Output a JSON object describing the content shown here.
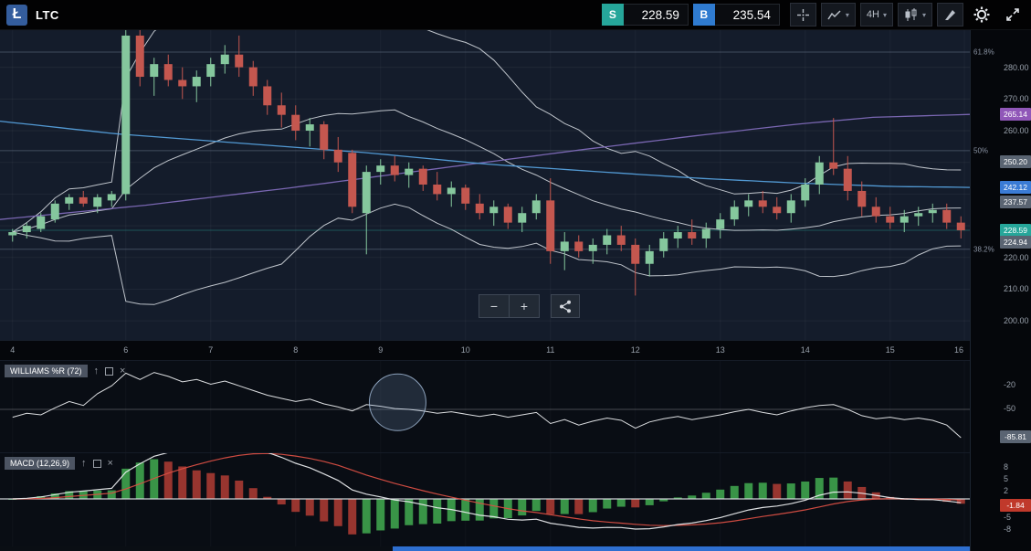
{
  "topbar": {
    "symbol": "LTC",
    "logo_letter": "Ł",
    "sell": {
      "label": "S",
      "price": "228.59"
    },
    "buy": {
      "label": "B",
      "price": "235.54"
    },
    "timeframe": "4H"
  },
  "icons": {
    "arrow_up": "↑",
    "close": "×",
    "minus": "−",
    "plus": "+",
    "caret": "▾"
  },
  "colors": {
    "bg_main": "#141c2b",
    "bg_panel": "#090d14",
    "candle_up": "#85c79d",
    "candle_down": "#c4574f",
    "bollinger": "#dde2e8",
    "ema_blue": "#55a0dc",
    "ma_purple": "#7e6ab8",
    "macd_line": "#e8eaec",
    "signal_line": "#d94f43",
    "hist_up": "#3fa34d",
    "hist_down": "#a83a32",
    "badge_gray": "#5a6472",
    "badge_purple": "#9057b8",
    "badge_blue": "#3a7bd5",
    "badge_teal": "#26a69a",
    "badge_red": "#c0392b",
    "accent_sell": "#26a69a",
    "accent_buy": "#2f7bd0",
    "scrollbar_blue": "#2e6fd0"
  },
  "chart_data": {
    "type": "candlestick",
    "symbol": "LTC",
    "timeframe": "4H",
    "current_price": 228.59,
    "x_axis": {
      "labels": [
        "4",
        "6",
        "7",
        "8",
        "9",
        "10",
        "11",
        "12",
        "13",
        "14",
        "15",
        "16"
      ],
      "indices": [
        0,
        8,
        14,
        20,
        26,
        32,
        38,
        44,
        50,
        56,
        62,
        68
      ]
    },
    "price_axis": {
      "ticks": [
        {
          "label": "280.00",
          "value": 280
        },
        {
          "label": "270.00",
          "value": 270
        },
        {
          "label": "260.00",
          "value": 260
        },
        {
          "label": "220.00",
          "value": 220
        },
        {
          "label": "210.00",
          "value": 210
        },
        {
          "label": "200.00",
          "value": 200
        }
      ],
      "gridlines": [
        280,
        270,
        260,
        250,
        240,
        230,
        220,
        210,
        200
      ],
      "badges": [
        {
          "label": "265.14",
          "value": 265.14,
          "color_key": "badge_purple"
        },
        {
          "label": "250.20",
          "value": 250.2,
          "color_key": "badge_gray"
        },
        {
          "label": "242.12",
          "value": 242.12,
          "color_key": "badge_blue"
        },
        {
          "label": "237.57",
          "value": 237.57,
          "color_key": "badge_gray"
        },
        {
          "label": "228.59",
          "value": 228.59,
          "color_key": "badge_teal"
        },
        {
          "label": "224.94",
          "value": 224.94,
          "color_key": "badge_gray"
        }
      ]
    },
    "fib_levels": [
      {
        "label": "61.8%",
        "price": 284.8
      },
      {
        "label": "50%",
        "price": 253.7
      },
      {
        "label": "38.2%",
        "price": 222.6
      }
    ],
    "candles": [
      [
        227,
        229,
        225,
        228
      ],
      [
        228,
        231,
        226,
        230
      ],
      [
        229,
        234,
        228,
        233
      ],
      [
        232,
        238,
        231,
        237
      ],
      [
        237,
        240,
        235,
        239
      ],
      [
        239,
        241,
        236,
        237
      ],
      [
        236,
        240,
        234,
        239
      ],
      [
        238,
        241,
        236,
        240
      ],
      [
        240,
        294,
        238,
        290
      ],
      [
        290,
        295,
        274,
        277
      ],
      [
        277,
        283,
        271,
        281
      ],
      [
        281,
        284,
        274,
        276
      ],
      [
        276,
        280,
        270,
        274
      ],
      [
        274,
        279,
        269,
        277
      ],
      [
        277,
        283,
        274,
        281
      ],
      [
        281,
        287,
        278,
        284
      ],
      [
        284,
        290,
        277,
        280
      ],
      [
        280,
        282,
        271,
        274
      ],
      [
        274,
        276,
        265,
        268
      ],
      [
        268,
        272,
        261,
        265
      ],
      [
        265,
        268,
        257,
        260
      ],
      [
        260,
        264,
        255,
        262
      ],
      [
        262,
        263,
        251,
        254
      ],
      [
        254,
        258,
        247,
        250
      ],
      [
        253,
        254,
        234,
        236
      ],
      [
        234,
        249,
        221,
        247
      ],
      [
        247,
        251,
        243,
        249
      ],
      [
        249,
        252,
        244,
        246
      ],
      [
        246,
        250,
        242,
        248
      ],
      [
        248,
        249,
        241,
        243
      ],
      [
        243,
        247,
        238,
        240
      ],
      [
        240,
        244,
        236,
        242
      ],
      [
        242,
        243,
        235,
        237
      ],
      [
        237,
        240,
        232,
        234
      ],
      [
        234,
        238,
        230,
        236
      ],
      [
        236,
        237,
        229,
        231
      ],
      [
        231,
        236,
        228,
        234
      ],
      [
        234,
        240,
        232,
        238
      ],
      [
        238,
        245,
        218,
        222
      ],
      [
        222,
        228,
        216,
        225
      ],
      [
        225,
        227,
        220,
        222
      ],
      [
        222,
        226,
        218,
        224
      ],
      [
        224,
        229,
        221,
        227
      ],
      [
        227,
        230,
        222,
        224
      ],
      [
        224,
        226,
        208,
        218
      ],
      [
        218,
        224,
        214,
        222
      ],
      [
        222,
        228,
        220,
        226
      ],
      [
        226,
        230,
        223,
        228
      ],
      [
        228,
        232,
        224,
        226
      ],
      [
        226,
        231,
        223,
        229
      ],
      [
        229,
        234,
        226,
        232
      ],
      [
        232,
        238,
        230,
        236
      ],
      [
        236,
        240,
        233,
        238
      ],
      [
        238,
        241,
        234,
        236
      ],
      [
        236,
        239,
        232,
        234
      ],
      [
        234,
        240,
        231,
        238
      ],
      [
        238,
        245,
        236,
        243
      ],
      [
        243,
        252,
        240,
        250
      ],
      [
        250,
        264,
        246,
        248
      ],
      [
        248,
        252,
        238,
        241
      ],
      [
        241,
        244,
        233,
        236
      ],
      [
        236,
        239,
        231,
        233
      ],
      [
        233,
        236,
        229,
        231
      ],
      [
        231,
        235,
        228,
        233
      ],
      [
        233,
        236,
        230,
        234
      ],
      [
        234,
        237,
        231,
        235
      ],
      [
        235,
        237,
        229,
        231
      ],
      [
        231,
        233,
        226,
        228.59
      ]
    ],
    "overlays": {
      "bollinger": {
        "period": 20,
        "stddev": 2
      },
      "ema_blue": {
        "last_value": "242.12",
        "points": [
          [
            0,
            263
          ],
          [
            0.12,
            259
          ],
          [
            0.25,
            256
          ],
          [
            0.38,
            253
          ],
          [
            0.5,
            249.5
          ],
          [
            0.62,
            247
          ],
          [
            0.72,
            245
          ],
          [
            0.82,
            243.5
          ],
          [
            0.92,
            242.4
          ],
          [
            1,
            242.12
          ]
        ]
      },
      "ma_purple": {
        "last_value": "265.14",
        "points": [
          [
            0,
            232
          ],
          [
            0.15,
            236.5
          ],
          [
            0.3,
            242
          ],
          [
            0.45,
            248
          ],
          [
            0.6,
            254
          ],
          [
            0.72,
            258.5
          ],
          [
            0.82,
            262
          ],
          [
            0.9,
            264.2
          ],
          [
            1,
            265.14
          ]
        ]
      }
    },
    "williams": {
      "title": "WILLIAMS %R (72)",
      "period": 72,
      "values": [
        -60,
        -55,
        -57,
        -48,
        -40,
        -45,
        -30,
        -20,
        -4,
        -12,
        -3,
        -8,
        -15,
        -12,
        -18,
        -14,
        -20,
        -26,
        -32,
        -36,
        -40,
        -37,
        -43,
        -47,
        -52,
        -44,
        -46,
        -49,
        -50,
        -52,
        -55,
        -53,
        -56,
        -59,
        -56,
        -60,
        -57,
        -54,
        -68,
        -63,
        -70,
        -65,
        -61,
        -64,
        -74,
        -66,
        -62,
        -59,
        -63,
        -60,
        -57,
        -53,
        -50,
        -54,
        -57,
        -52,
        -48,
        -45,
        -44,
        -50,
        -58,
        -62,
        -60,
        -63,
        -61,
        -64,
        -70,
        -86
      ],
      "axis": [
        {
          "label": "-20",
          "value": -20
        },
        {
          "label": "-50",
          "value": -50
        }
      ],
      "badge": {
        "label": "-85.81",
        "value": -85.81
      },
      "gridline": -50,
      "annotation_circle": {
        "x_frac": 0.41,
        "value": -41,
        "r": 31
      }
    },
    "macd": {
      "title": "MACD (12,26,9)",
      "params": {
        "fast": 12,
        "slow": 26,
        "signal": 9
      },
      "axis": [
        {
          "label": "8",
          "value": 8
        },
        {
          "label": "5",
          "value": 5
        },
        {
          "label": "2",
          "value": 2
        },
        {
          "label": "-5",
          "value": -5
        },
        {
          "label": "-8",
          "value": -8
        }
      ],
      "badge": {
        "label": "-1.84",
        "value": -1.84
      }
    }
  }
}
